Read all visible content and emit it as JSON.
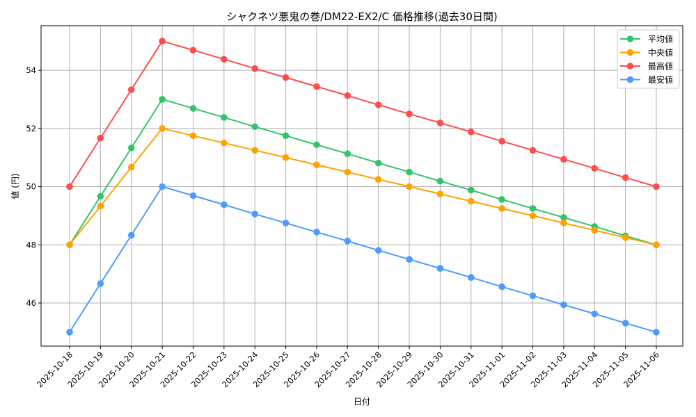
{
  "chart_data": {
    "type": "line",
    "title": "シャクネツ悪鬼の巻/DM22-EX2/C 価格推移(過去30日間)",
    "xlabel": "日付",
    "ylabel": "値 (円)",
    "ylim": [
      44.52,
      55.53
    ],
    "yticks": [
      46,
      48,
      50,
      52,
      54
    ],
    "grid": true,
    "legend_position": "upper right",
    "categories": [
      "2025-10-18",
      "2025-10-19",
      "2025-10-20",
      "2025-10-21",
      "2025-10-22",
      "2025-10-23",
      "2025-10-24",
      "2025-10-25",
      "2025-10-26",
      "2025-10-27",
      "2025-10-28",
      "2025-10-29",
      "2025-10-30",
      "2025-10-31",
      "2025-11-01",
      "2025-11-02",
      "2025-11-03",
      "2025-11-04",
      "2025-11-05",
      "2025-11-06"
    ],
    "series": [
      {
        "name": "平均値",
        "color": "#33c46a",
        "values": [
          48.0,
          49.67,
          51.33,
          53.0,
          52.69,
          52.38,
          52.06,
          51.75,
          51.44,
          51.13,
          50.81,
          50.5,
          50.19,
          49.88,
          49.56,
          49.25,
          48.94,
          48.63,
          48.31,
          48.0
        ]
      },
      {
        "name": "中央値",
        "color": "#ffa200",
        "values": [
          48.0,
          49.33,
          50.67,
          52.0,
          51.75,
          51.5,
          51.25,
          51.0,
          50.75,
          50.5,
          50.25,
          50.0,
          49.75,
          49.5,
          49.25,
          49.0,
          48.75,
          48.5,
          48.25,
          48.0
        ]
      },
      {
        "name": "最高値",
        "color": "#ff4d4d",
        "values": [
          50.0,
          51.67,
          53.33,
          55.0,
          54.69,
          54.38,
          54.06,
          53.75,
          53.44,
          53.13,
          52.81,
          52.5,
          52.19,
          51.88,
          51.56,
          51.25,
          50.94,
          50.63,
          50.31,
          50.0
        ]
      },
      {
        "name": "最安値",
        "color": "#4d9bff",
        "values": [
          45.0,
          46.67,
          48.33,
          50.0,
          49.69,
          49.38,
          49.06,
          48.75,
          48.44,
          48.13,
          47.81,
          47.5,
          47.19,
          46.88,
          46.56,
          46.25,
          45.94,
          45.63,
          45.31,
          45.0
        ]
      }
    ]
  }
}
